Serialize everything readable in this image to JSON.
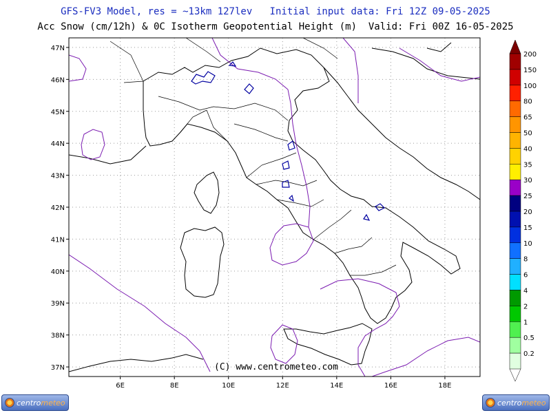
{
  "header": {
    "line1": "GFS-FV3 Model, res = ~13km 127lev   Initial input data: Fri 12Z 09-05-2025",
    "line2": "Acc Snow (cm/12h) & 0C Isotherm Geopotential Height (m)  Valid: Fri 00Z 16-05-2025"
  },
  "copyright": "(C) www.centrometeo.com",
  "logo": {
    "part1": "centro",
    "part2": "meteo"
  },
  "map": {
    "lat_labels": [
      "47N",
      "46N",
      "45N",
      "44N",
      "43N",
      "42N",
      "41N",
      "40N",
      "39N",
      "38N",
      "37N"
    ],
    "lon_labels": [
      "6E",
      "8E",
      "10E",
      "12E",
      "14E",
      "16E",
      "18E"
    ],
    "lat_range": [
      36.7,
      47.3
    ],
    "lon_range": [
      4.1,
      19.3
    ]
  },
  "legend": {
    "levels": [
      "200",
      "150",
      "100",
      "80",
      "65",
      "50",
      "40",
      "35",
      "30",
      "25",
      "20",
      "15",
      "10",
      "8",
      "6",
      "4",
      "2",
      "1",
      "0.5",
      "0.2"
    ],
    "colors": [
      "#7a0000",
      "#a00000",
      "#d00000",
      "#ff2000",
      "#ff6a00",
      "#ff9500",
      "#ffb400",
      "#ffd200",
      "#ffef00",
      "#9a00c8",
      "#000080",
      "#0010b0",
      "#0030e0",
      "#1070ff",
      "#20b0ff",
      "#00e0ff",
      "#009a00",
      "#00c800",
      "#50f050",
      "#a0ffa0",
      "#e0ffe0"
    ]
  },
  "colors": {
    "isotherm": "#7a1ab0",
    "snow": "#0000a0",
    "grid": "#999999"
  }
}
